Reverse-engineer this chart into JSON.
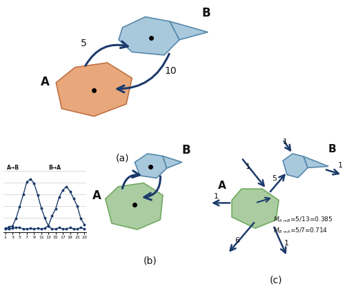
{
  "bg_color": "#ffffff",
  "dark_arrow": "#1b3a6b",
  "blue_fill": "#a8c8dc",
  "blue_edge": "#5588aa",
  "orange_fill": "#e8a87c",
  "orange_edge": "#c07040",
  "green_fill": "#aacca0",
  "green_edge": "#70aa60",
  "label_color": "#111111",
  "panel_a_label": "(a)",
  "panel_b_label": "(b)",
  "panel_c_label": "(c)",
  "flow_5": "5",
  "flow_10": "10",
  "label_A": "A",
  "label_B": "B",
  "eq1": "$M_{A\\rightarrow B}$=5/13=0.385",
  "eq2": "$M_{B\\rightarrow A}$=5/7=0.714",
  "chart_label_ab": "A→B",
  "chart_label_ba": "B→A"
}
